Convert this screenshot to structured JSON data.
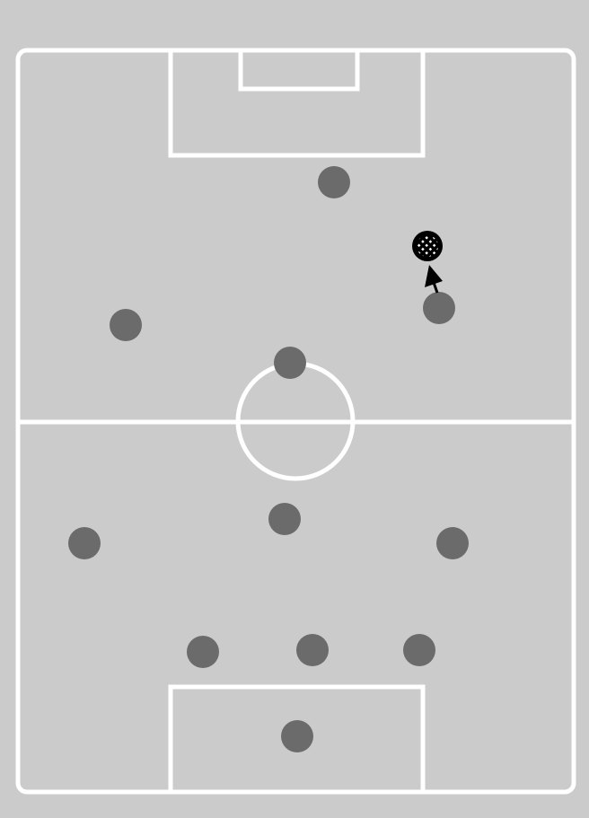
{
  "colors": {
    "background": "#cbcbcb",
    "field": "#cbcbcb",
    "lines": "#ffffff",
    "player": "#6b6b6b",
    "ball": "#000000",
    "arrow": "#000000"
  },
  "field": {
    "orientation": "vertical",
    "markings": [
      "touchline",
      "halfway-line",
      "center-circle",
      "top-penalty-box",
      "top-goal-box",
      "bottom-penalty-box"
    ]
  },
  "players": [
    {
      "id": "top-1"
    },
    {
      "id": "top-2"
    },
    {
      "id": "top-3"
    },
    {
      "id": "top-4"
    },
    {
      "id": "bottom-1"
    },
    {
      "id": "bottom-2"
    },
    {
      "id": "bottom-3"
    },
    {
      "id": "bottom-4"
    },
    {
      "id": "bottom-5"
    },
    {
      "id": "bottom-6"
    },
    {
      "id": "goalkeeper"
    }
  ],
  "ball": {
    "icon": "ball-icon"
  },
  "movement_arrow": {
    "icon": "arrow-icon",
    "direction": "toward-ball"
  }
}
